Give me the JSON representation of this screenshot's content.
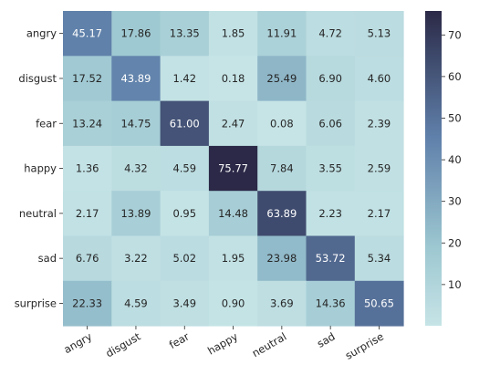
{
  "chart_data": {
    "type": "heatmap",
    "title": "",
    "xlabel": "",
    "ylabel": "",
    "x_categories": [
      "angry",
      "disgust",
      "fear",
      "happy",
      "neutral",
      "sad",
      "surprise"
    ],
    "y_categories": [
      "angry",
      "disgust",
      "fear",
      "happy",
      "neutral",
      "sad",
      "surprise"
    ],
    "values": [
      [
        45.17,
        17.86,
        13.35,
        1.85,
        11.91,
        4.72,
        5.13
      ],
      [
        17.52,
        43.89,
        1.42,
        0.18,
        25.49,
        6.9,
        4.6
      ],
      [
        13.24,
        14.75,
        61.0,
        2.47,
        0.08,
        6.06,
        2.39
      ],
      [
        1.36,
        4.32,
        4.59,
        75.77,
        7.84,
        3.55,
        2.59
      ],
      [
        2.17,
        13.89,
        0.95,
        14.48,
        63.89,
        2.23,
        2.17
      ],
      [
        6.76,
        3.22,
        5.02,
        1.95,
        23.98,
        53.72,
        5.34
      ],
      [
        22.33,
        4.59,
        3.49,
        0.9,
        3.69,
        14.36,
        50.65
      ]
    ],
    "value_format": "2 decimals",
    "colorbar": {
      "min": 0.08,
      "max": 75.77,
      "ticks": [
        10,
        20,
        30,
        40,
        50,
        60,
        70
      ]
    },
    "colormap": {
      "low": "#c6e4e6",
      "mid": "#9dc7d1",
      "midhigh": "#5f80aa",
      "high": "#2b2947"
    },
    "tick_label_rotation_deg": 30,
    "grid": false,
    "legend": "colorbar-right"
  }
}
